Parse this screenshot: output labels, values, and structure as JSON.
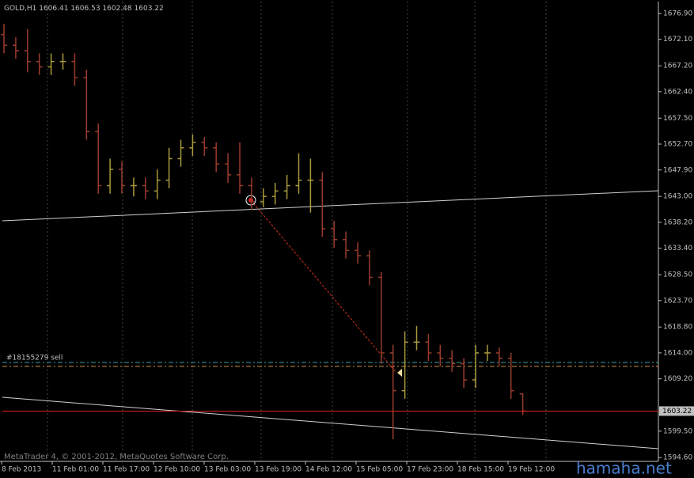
{
  "chart_data": {
    "type": "ohlc",
    "title": "GOLD,H1",
    "up_color": "#a89a3c",
    "down_color": "#9a3c2c",
    "ylim": [
      1593.9,
      1679.1
    ],
    "yticks": [
      {
        "value": 1676.9,
        "label": "1676.90"
      },
      {
        "value": 1672.1,
        "label": "1672.10"
      },
      {
        "value": 1667.2,
        "label": "1667.20"
      },
      {
        "value": 1662.4,
        "label": "1662.40"
      },
      {
        "value": 1657.5,
        "label": "1657.50"
      },
      {
        "value": 1652.7,
        "label": "1652.70"
      },
      {
        "value": 1647.9,
        "label": "1647.90"
      },
      {
        "value": 1643.0,
        "label": "1643.00"
      },
      {
        "value": 1638.2,
        "label": "1638.20"
      },
      {
        "value": 1633.4,
        "label": "1633.40"
      },
      {
        "value": 1628.5,
        "label": "1628.50"
      },
      {
        "value": 1623.7,
        "label": "1623.70"
      },
      {
        "value": 1618.8,
        "label": "1618.80"
      },
      {
        "value": 1614.0,
        "label": "1614.00"
      },
      {
        "value": 1609.2,
        "label": "1609.20"
      },
      {
        "value": 1599.5,
        "label": "1599.50"
      },
      {
        "value": 1594.6,
        "label": "1594.60"
      }
    ],
    "xlabels": [
      "8 Feb 2013",
      "11 Feb 01:00",
      "11 Feb 17:00",
      "12 Feb 10:00",
      "13 Feb 03:00",
      "13 Feb 19:00",
      "14 Feb 12:00",
      "15 Feb 05:00",
      "17 Feb 23:00",
      "18 Feb 15:00",
      "19 Feb 12:00"
    ],
    "open": [
      1673,
      1671,
      1670,
      1668,
      1667,
      1668,
      1668,
      1665,
      1655,
      1645,
      1648,
      1645,
      1645,
      1644,
      1646,
      1650,
      1652,
      1653,
      1652,
      1649,
      1647,
      1645,
      1642,
      1643,
      1644,
      1645,
      1646,
      1646,
      1637,
      1635,
      1633,
      1632,
      1628,
      1614,
      1607,
      1616,
      1616,
      1614,
      1613,
      1612,
      1609,
      1614,
      1614,
      1613,
      1606.41
    ],
    "high": [
      1675,
      1672.5,
      1674,
      1669.5,
      1669.5,
      1669.5,
      1669.5,
      1666.5,
      1656.5,
      1650,
      1649.5,
      1646.5,
      1646.5,
      1648,
      1652,
      1653.5,
      1654.5,
      1654,
      1653,
      1651,
      1653,
      1646.5,
      1644.5,
      1645.5,
      1647,
      1651,
      1650,
      1647.5,
      1638.5,
      1636.5,
      1634.5,
      1633,
      1629,
      1615.5,
      1618,
      1619,
      1617.5,
      1615.5,
      1614.5,
      1613,
      1615.5,
      1615.5,
      1615,
      1614,
      1606.53
    ],
    "low": [
      1669.5,
      1668.5,
      1666,
      1665.5,
      1665.5,
      1666.5,
      1663.5,
      1653.5,
      1643.5,
      1643.5,
      1643.5,
      1643,
      1642.5,
      1642.5,
      1644.5,
      1648.5,
      1650.5,
      1650.5,
      1647.5,
      1645.5,
      1643.5,
      1640.5,
      1641,
      1641.5,
      1642.5,
      1643.5,
      1640,
      1635.5,
      1633.5,
      1631.5,
      1630.5,
      1626.5,
      1612,
      1598,
      1605.5,
      1614.5,
      1612.5,
      1611.5,
      1610.5,
      1607.5,
      1607.5,
      1612.5,
      1611.5,
      1605.5,
      1602.48
    ],
    "close": [
      1671,
      1670,
      1668,
      1667,
      1668,
      1668,
      1665,
      1655,
      1645,
      1648,
      1645,
      1645,
      1644,
      1646,
      1650,
      1652,
      1653,
      1652,
      1649,
      1647,
      1645,
      1642,
      1643,
      1644,
      1645,
      1646,
      1646,
      1637,
      1635,
      1633,
      1632,
      1628,
      1614,
      1607,
      1616,
      1616,
      1614,
      1613,
      1612,
      1609,
      1614,
      1614,
      1613,
      1607,
      1603.22
    ],
    "order_label": "#18155279 sell",
    "copyright": "MetaTrader 4, © 2001-2012, MetaQuotes Software Corp.",
    "watermark": "hamaha.net"
  }
}
